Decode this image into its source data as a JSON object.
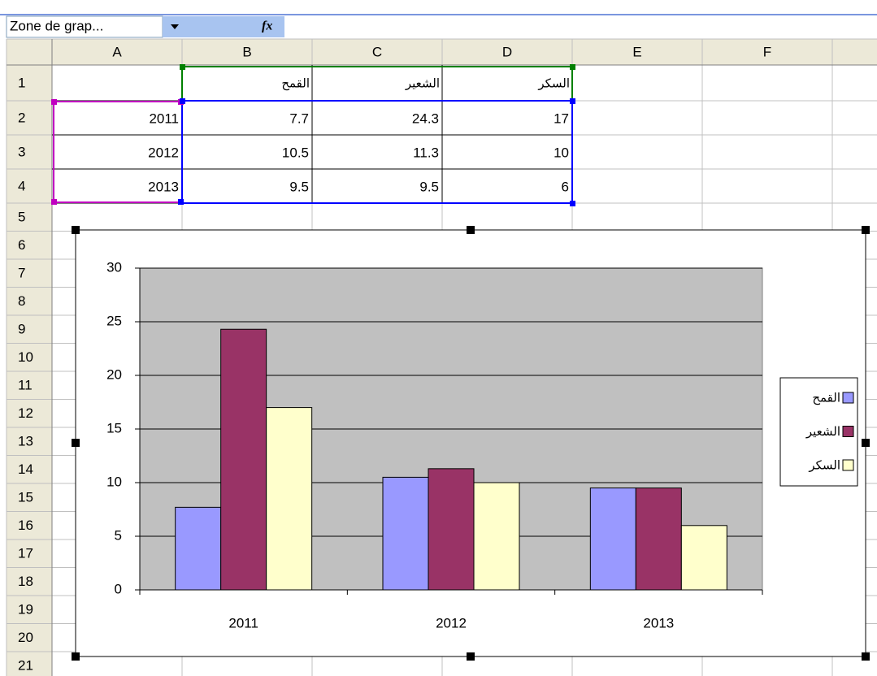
{
  "name_box": "Zone de grap...",
  "formula_icon": "fx",
  "columns": [
    "A",
    "B",
    "C",
    "D",
    "E",
    "F"
  ],
  "row_numbers": [
    "1",
    "2",
    "3",
    "4",
    "5",
    "6",
    "7",
    "8",
    "9",
    "10",
    "11",
    "12",
    "13",
    "14",
    "15",
    "16",
    "17",
    "18",
    "19",
    "20",
    "21"
  ],
  "table": {
    "header": [
      "القمح",
      "الشعير",
      "السكر"
    ],
    "rows": [
      [
        "2011",
        "7.7",
        "24.3",
        "17"
      ],
      [
        "2012",
        "10.5",
        "11.3",
        "10"
      ],
      [
        "2013",
        "9.5",
        "9.5",
        "6"
      ]
    ]
  },
  "chart_data": {
    "type": "bar",
    "categories": [
      "2011",
      "2012",
      "2013"
    ],
    "series": [
      {
        "name": "القمح",
        "color": "#9999ff",
        "values": [
          7.7,
          10.5,
          9.5
        ]
      },
      {
        "name": "الشعير",
        "color": "#993366",
        "values": [
          24.3,
          11.3,
          9.5
        ]
      },
      {
        "name": "السكر",
        "color": "#ffffcc",
        "values": [
          17,
          10,
          6
        ]
      }
    ],
    "ylim": [
      0,
      30
    ],
    "yticks": [
      0,
      5,
      10,
      15,
      20,
      25,
      30
    ],
    "grid": true,
    "legend": "right",
    "plot_background": "#c0c0c0"
  }
}
